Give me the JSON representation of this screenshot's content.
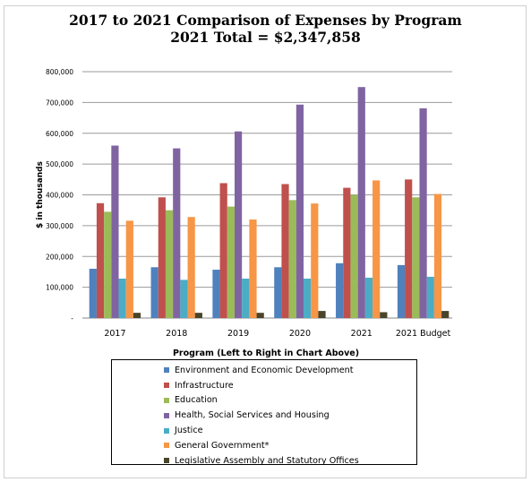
{
  "title_line1": "2017 to 2021 Comparison of Expenses by Program",
  "title_line2": "2021 Total = $2,347,858",
  "chart_data": {
    "type": "bar",
    "categories": [
      "2017",
      "2018",
      "2019",
      "2020",
      "2021",
      "2021 Budget"
    ],
    "ylabel": "$ in thousands",
    "xlabel": "Program (Left to Right in Chart Above)",
    "ylim": [
      0,
      800000
    ],
    "y_ticks": [
      "-",
      "100,000",
      "200,000",
      "300,000",
      "400,000",
      "500,000",
      "600,000",
      "700,000",
      "800,000"
    ],
    "grid": true,
    "legend_position": "bottom",
    "series": [
      {
        "name": "Environment and Economic Development",
        "color": "#4f81bd",
        "values": [
          160000,
          165000,
          157000,
          165000,
          178000,
          172000
        ]
      },
      {
        "name": "Infrastructure",
        "color": "#c0504d",
        "values": [
          373000,
          392000,
          438000,
          435000,
          423000,
          450000
        ]
      },
      {
        "name": "Education",
        "color": "#9bbb59",
        "values": [
          345000,
          350000,
          362000,
          383000,
          400000,
          392000
        ]
      },
      {
        "name": "Health, Social Services and Housing",
        "color": "#8064a2",
        "values": [
          560000,
          551000,
          606000,
          693000,
          750000,
          681000
        ]
      },
      {
        "name": "Justice",
        "color": "#4bacc6",
        "values": [
          128000,
          124000,
          128000,
          128000,
          131000,
          134000
        ]
      },
      {
        "name": "General Government*",
        "color": "#f79646",
        "values": [
          316000,
          328000,
          320000,
          372000,
          447000,
          403000
        ]
      },
      {
        "name": "Legislative Assembly and Statutory Offices",
        "color": "#4a452a",
        "values": [
          17000,
          17000,
          17000,
          23000,
          19000,
          23000
        ]
      }
    ]
  }
}
